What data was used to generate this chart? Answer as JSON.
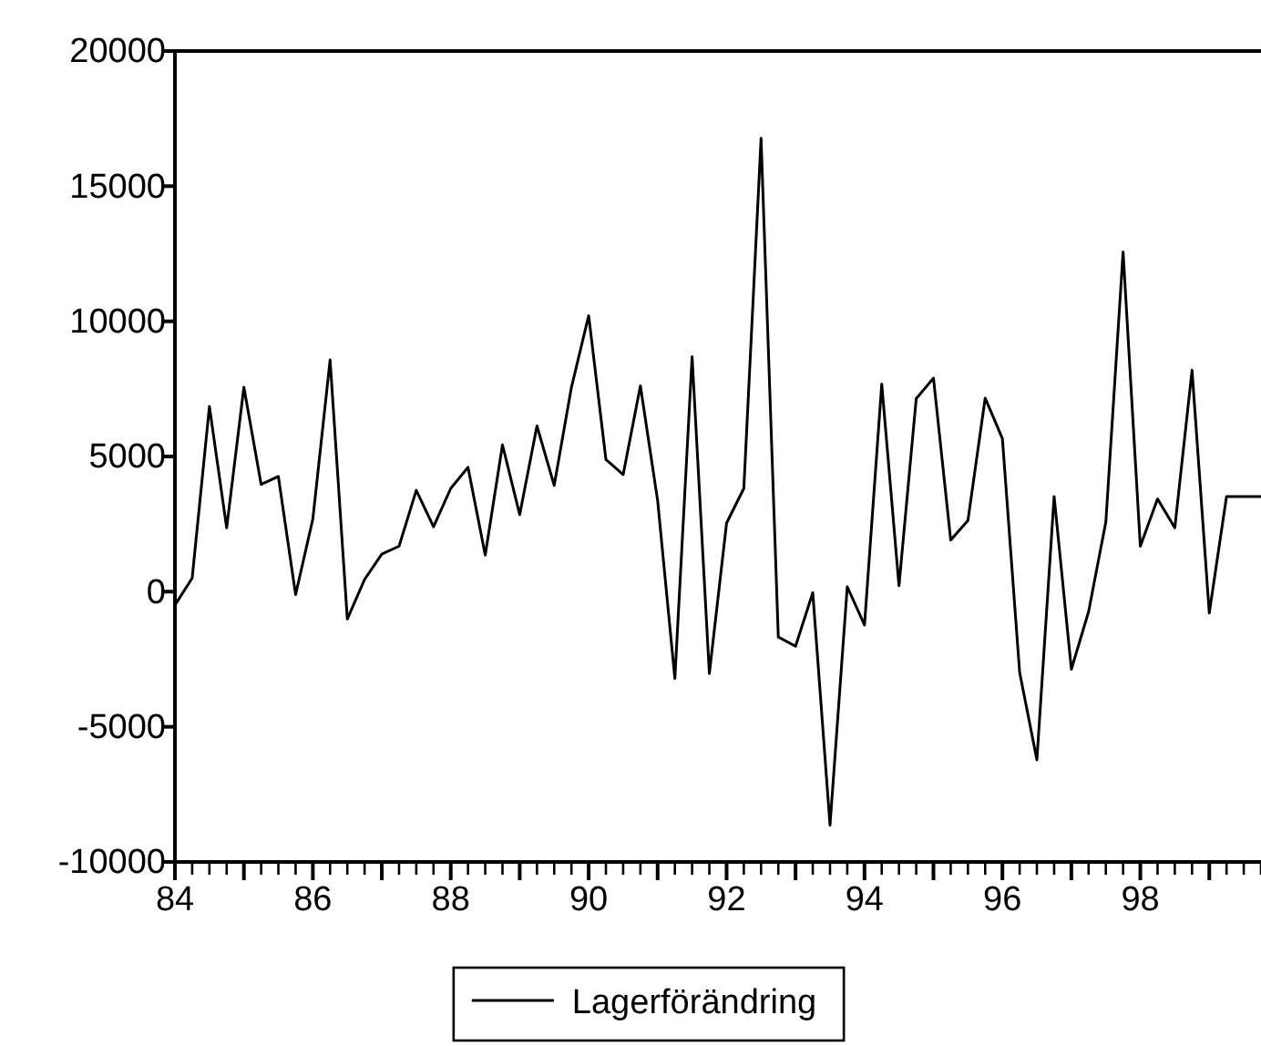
{
  "chart_data": {
    "type": "line",
    "legend": "bottom",
    "marker": "none",
    "line_style": "solid",
    "grid": false,
    "x": [
      84,
      84.25,
      84.5,
      84.75,
      85,
      85.25,
      85.5,
      85.75,
      86,
      86.25,
      86.5,
      86.75,
      87,
      87.25,
      87.5,
      87.75,
      88,
      88.25,
      88.5,
      88.75,
      89,
      89.25,
      89.5,
      89.75,
      90,
      90.25,
      90.5,
      90.75,
      91,
      91.25,
      91.5,
      91.75,
      92,
      92.25,
      92.5,
      92.75,
      93,
      93.25,
      93.5,
      93.75,
      94,
      94.25,
      94.5,
      94.75,
      95,
      95.25,
      95.5,
      95.75,
      96,
      96.25,
      96.5,
      96.75,
      97,
      97.25,
      97.5,
      97.75,
      98,
      98.25,
      98.5,
      98.75,
      99,
      99.25,
      99.5,
      99.75
    ],
    "series": [
      {
        "name": "Lagerförändring",
        "color": "#000000",
        "values": [
          -500,
          500,
          6850,
          2360,
          7560,
          3970,
          4260,
          -110,
          2690,
          8570,
          -1010,
          450,
          1390,
          1680,
          3750,
          2400,
          3820,
          4600,
          1350,
          5430,
          2850,
          6130,
          3930,
          7560,
          10210,
          4890,
          4330,
          7610,
          3370,
          -3210,
          8690,
          -3030,
          2540,
          3820,
          16770,
          -1680,
          -2020,
          -40,
          -8640,
          180,
          -1230,
          7680,
          220,
          7140,
          7900,
          1910,
          2630,
          7160,
          5660,
          -2990,
          -6220,
          3520,
          -2870,
          -740,
          2580,
          12570,
          1680,
          3430,
          2360,
          8190,
          -790,
          3520,
          3520,
          3520
        ]
      }
    ],
    "xlim": [
      84,
      99.75
    ],
    "xticks": [
      84,
      {
        "value": 85,
        "label": null
      },
      86,
      {
        "value": 87,
        "label": null
      },
      88,
      {
        "value": 89,
        "label": null
      },
      90,
      {
        "value": 91,
        "label": null
      },
      92,
      {
        "value": 93,
        "label": null
      },
      94,
      {
        "value": 95,
        "label": null
      },
      96,
      {
        "value": 97,
        "label": null
      },
      98,
      {
        "value": 99,
        "label": null
      }
    ],
    "ylim": [
      -10000,
      20000
    ],
    "yticks": [
      -10000,
      -5000,
      0,
      5000,
      10000,
      15000,
      20000
    ]
  }
}
